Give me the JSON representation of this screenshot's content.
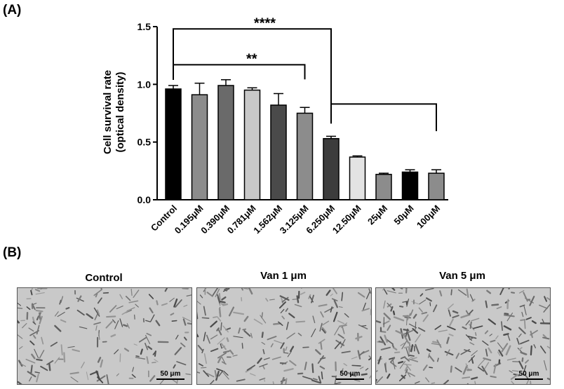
{
  "panels": {
    "a_label": "(A)",
    "b_label": "(B)"
  },
  "chart_data": {
    "type": "bar",
    "ylabel_line1": "Cell survival rate",
    "ylabel_line2": "(optical density)",
    "ylim": [
      0,
      1.5
    ],
    "yticks": [
      "0.0",
      "0.5",
      "1.0",
      "1.5"
    ],
    "ytick_values": [
      0,
      0.5,
      1.0,
      1.5
    ],
    "categories": [
      "Control",
      "0.195μM",
      "0.390μM",
      "0.781μM",
      "1.562μM",
      "3.125μM",
      "6.250μM",
      "12.50μM",
      "25μM",
      "50μM",
      "100μM"
    ],
    "values": [
      0.96,
      0.91,
      0.99,
      0.95,
      0.82,
      0.75,
      0.53,
      0.37,
      0.22,
      0.24,
      0.23
    ],
    "errors": [
      0.03,
      0.1,
      0.05,
      0.02,
      0.1,
      0.05,
      0.02,
      0.01,
      0.01,
      0.02,
      0.03
    ],
    "bar_colors": [
      "#000000",
      "#8c8c8c",
      "#6a6a6a",
      "#c8c8c8",
      "#4a4a4a",
      "#8c8c8c",
      "#3c3c3c",
      "#e3e3e3",
      "#8c8c8c",
      "#000000",
      "#8c8c8c"
    ],
    "grid": false,
    "significance": [
      {
        "label": "****",
        "from": 0,
        "to": 6,
        "y": 1.48
      },
      {
        "label": "**",
        "from": 0,
        "to": 5,
        "y": 1.17
      },
      {
        "label": "",
        "from": 6,
        "to": 10,
        "y": 0.83
      }
    ]
  },
  "images": [
    {
      "title": "Control",
      "scale_label": "50 μm"
    },
    {
      "title": "Van 1 μm",
      "scale_label": "50 μm"
    },
    {
      "title": "Van 5 μm",
      "scale_label": "50 μm"
    }
  ]
}
